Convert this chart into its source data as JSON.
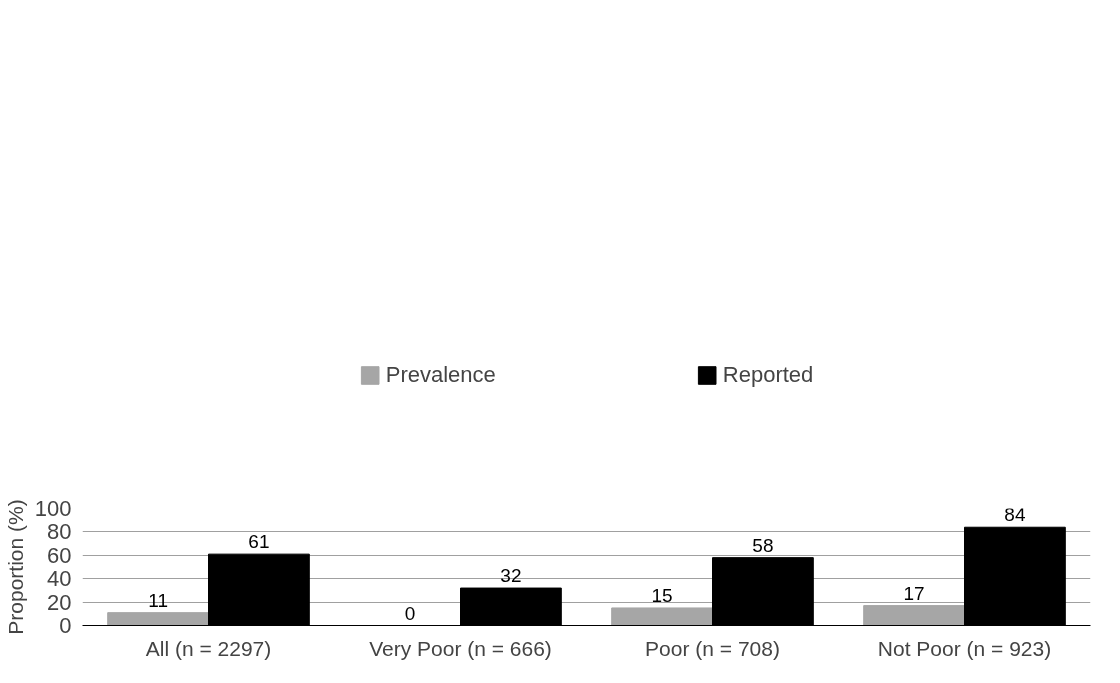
{
  "chart_data": {
    "type": "bar",
    "ylabel": "Proportion (%)",
    "categories": [
      "All (n = 2297)",
      "Very Poor (n = 666)",
      "Poor (n = 708)",
      "Not Poor (n = 923)"
    ],
    "series": [
      {
        "name": "Prevalence",
        "color": "#a6a6a6",
        "values": [
          11,
          0,
          15,
          17
        ]
      },
      {
        "name": "Reported",
        "color": "#000000",
        "values": [
          61,
          32,
          58,
          84
        ]
      }
    ],
    "ylim": [
      0,
      100
    ],
    "yticks": [
      0,
      20,
      40,
      60,
      80,
      100
    ],
    "grid": "y",
    "legend": "top",
    "data_labels": true
  }
}
